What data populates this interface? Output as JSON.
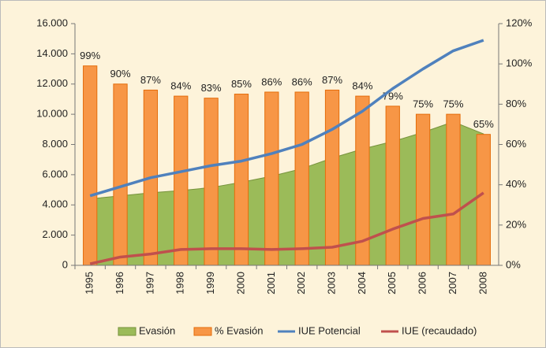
{
  "chart_data": {
    "type": "combo",
    "categories": [
      "1995",
      "1996",
      "1997",
      "1998",
      "1999",
      "2000",
      "2001",
      "2002",
      "2003",
      "2004",
      "2005",
      "2006",
      "2007",
      "2008"
    ],
    "series": [
      {
        "name": "Evasión",
        "type": "area",
        "color": "#9bbb59",
        "values": [
          4400,
          4600,
          4800,
          4950,
          5150,
          5500,
          5900,
          6400,
          7100,
          7700,
          8200,
          8800,
          9500,
          8700
        ]
      },
      {
        "name": "% Evasión",
        "type": "bar",
        "axis": "y2",
        "color": "#f79646",
        "values": [
          99,
          90,
          87,
          84,
          83,
          85,
          86,
          86,
          87,
          84,
          79,
          75,
          75,
          65
        ],
        "value_labels": [
          "99%",
          "90%",
          "87%",
          "84%",
          "83%",
          "85%",
          "86%",
          "86%",
          "87%",
          "84%",
          "79%",
          "75%",
          "75%",
          "65%"
        ]
      },
      {
        "name": "IUE Potencial",
        "type": "line",
        "color": "#4f81bd",
        "values": [
          4600,
          5200,
          5800,
          6200,
          6600,
          6900,
          7400,
          8000,
          9000,
          10200,
          11700,
          13000,
          14200,
          14900
        ]
      },
      {
        "name": "IUE (recaudado)",
        "type": "line",
        "color": "#c0504d",
        "values": [
          100,
          550,
          750,
          1050,
          1100,
          1100,
          1050,
          1100,
          1200,
          1600,
          2400,
          3100,
          3400,
          4800
        ]
      }
    ],
    "ylim": [
      0,
      16000
    ],
    "yticks": [
      0,
      {
        "value": 2000,
        "label": "2.000"
      },
      {
        "value": 4000,
        "label": "4.000"
      },
      {
        "value": 6000,
        "label": "6.000"
      },
      {
        "value": 8000,
        "label": "8.000"
      },
      {
        "value": 10000,
        "label": "10.000"
      },
      {
        "value": 12000,
        "label": "12.000"
      },
      {
        "value": 14000,
        "label": "14.000"
      },
      {
        "value": 16000,
        "label": "16.000"
      }
    ],
    "y2lim": [
      0,
      120
    ],
    "y2ticks": [
      {
        "value": 0,
        "label": "0%"
      },
      {
        "value": 20,
        "label": "20%"
      },
      {
        "value": 40,
        "label": "40%"
      },
      {
        "value": 60,
        "label": "60%"
      },
      {
        "value": 80,
        "label": "80%"
      },
      {
        "value": 100,
        "label": "100%"
      },
      {
        "value": 120,
        "label": "120%"
      }
    ],
    "grid": false,
    "legend": "bottom"
  }
}
